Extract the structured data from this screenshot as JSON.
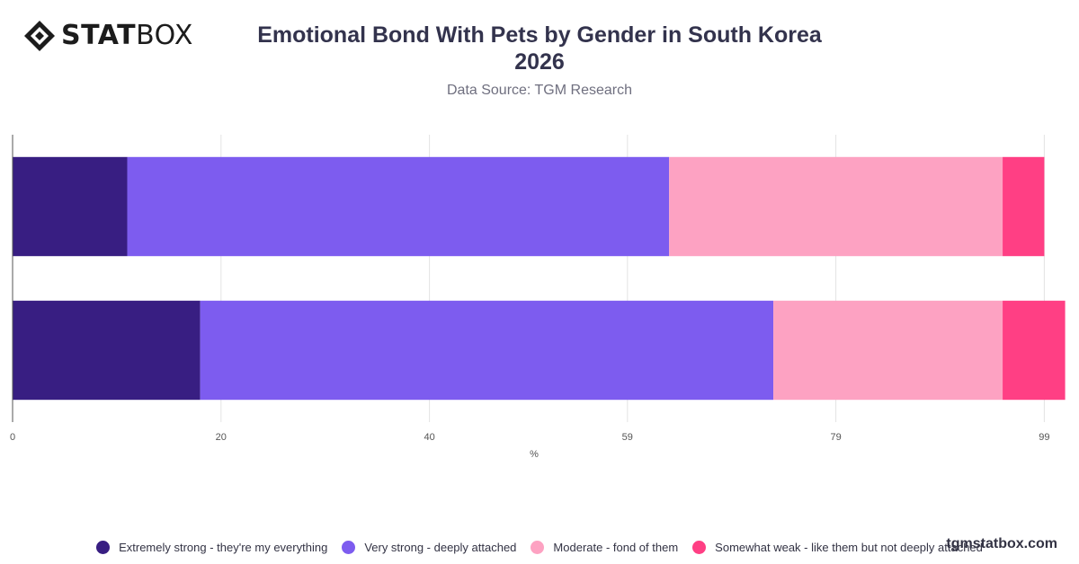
{
  "brand": {
    "logo_bold": "STAT",
    "logo_light": "BOX",
    "watermark": "tgmstatbox.com"
  },
  "header": {
    "title_line1": "Emotional Bond With Pets by Gender in South Korea",
    "title_line2": "2026",
    "subtitle": "Data Source: TGM Research"
  },
  "colors": {
    "extremely_strong": "#381e82",
    "very_strong": "#7d5cef",
    "moderate": "#fda2c2",
    "somewhat_weak": "#ff3f84",
    "grid": "#e3e3e3",
    "axis": "#555555"
  },
  "chart_data": {
    "type": "bar",
    "orientation": "horizontal",
    "stacked": true,
    "categories": [
      "",
      ""
    ],
    "series": [
      {
        "name": "Extremely strong - they're my everything",
        "values": [
          11,
          18
        ]
      },
      {
        "name": "Very strong - deeply attached",
        "values": [
          52,
          55
        ]
      },
      {
        "name": "Moderate - fond of them",
        "values": [
          32,
          22
        ]
      },
      {
        "name": "Somewhat weak - like them but not deeply attached",
        "values": [
          4,
          6
        ]
      }
    ],
    "xlabel": "%",
    "ylabel": "",
    "xticks": [
      0,
      20,
      40,
      59,
      79,
      99
    ],
    "xlim": [
      0,
      100
    ],
    "grid": true,
    "legend": "bottom"
  }
}
